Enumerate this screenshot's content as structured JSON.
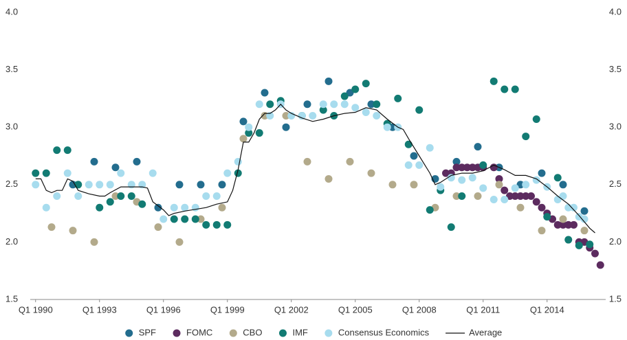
{
  "chart_data": {
    "type": "scatter",
    "xlim": [
      1989.75,
      2016.75
    ],
    "xticks": [
      {
        "value": 1990,
        "label": "Q1 1990"
      },
      {
        "value": 1993,
        "label": "Q1 1993"
      },
      {
        "value": 1996,
        "label": "Q1 1996"
      },
      {
        "value": 1999,
        "label": "Q1 1999"
      },
      {
        "value": 2002,
        "label": "Q1 2002"
      },
      {
        "value": 2005,
        "label": "Q1 2005"
      },
      {
        "value": 2008,
        "label": "Q1 2008"
      },
      {
        "value": 2011,
        "label": "Q1 2011"
      },
      {
        "value": 2014,
        "label": "Q1 2014"
      }
    ],
    "ylim": [
      1.5,
      4
    ],
    "yticks": [
      1.5,
      {
        "value": 2,
        "label": "2.0"
      },
      2.5,
      {
        "value": 3,
        "label": "3.0"
      },
      3.5,
      {
        "value": 4,
        "label": "4.0"
      }
    ],
    "y2lim": [
      1.5,
      4
    ],
    "y2ticks": [
      1.5,
      {
        "value": 2,
        "label": "2.0"
      },
      2.5,
      {
        "value": 3,
        "label": "3.0"
      },
      3.5,
      {
        "value": 4,
        "label": "4.0"
      }
    ],
    "grid": false,
    "legend": "bottom",
    "series": [
      {
        "name": "SPF",
        "color": "#236d8e",
        "x": [
          1991.75,
          1992.75,
          1993.75,
          1994.75,
          1995.75,
          1996.75,
          1997.75,
          1998.75,
          1999.75,
          2000.75,
          2001.75,
          2002.75,
          2003.75,
          2004.75,
          2005.75,
          2006.75,
          2007.75,
          2008.75,
          2009.75,
          2010.75,
          2011.75,
          2012.75,
          2013.75,
          2014.75,
          2015.75
        ],
        "values": [
          2.5,
          2.7,
          2.65,
          2.7,
          2.3,
          2.5,
          2.5,
          2.5,
          3.05,
          3.3,
          3.0,
          3.2,
          3.4,
          3.3,
          3.2,
          3.0,
          2.75,
          2.55,
          2.7,
          2.83,
          2.65,
          2.5,
          2.6,
          2.5,
          2.27
        ]
      },
      {
        "name": "FOMC",
        "color": "#5c2b5f",
        "x": [
          2009.25,
          2009.5,
          2009.75,
          2010,
          2010.25,
          2010.5,
          2010.75,
          2011,
          2011.5,
          2011.75,
          2012,
          2012.25,
          2012.5,
          2012.75,
          2013,
          2013.25,
          2013.5,
          2013.75,
          2014,
          2014.25,
          2014.5,
          2014.75,
          2015,
          2015.25,
          2015.5,
          2015.75,
          2016,
          2016.25,
          2016.5
        ],
        "values": [
          2.6,
          2.6,
          2.65,
          2.65,
          2.65,
          2.65,
          2.65,
          2.65,
          2.65,
          2.55,
          2.45,
          2.4,
          2.4,
          2.4,
          2.4,
          2.4,
          2.35,
          2.3,
          2.25,
          2.2,
          2.15,
          2.15,
          2.15,
          2.15,
          2.0,
          2.0,
          1.95,
          1.9,
          1.8
        ]
      },
      {
        "name": "CBO",
        "color": "#b3aa8b",
        "x": [
          1990.75,
          1991.75,
          1992.75,
          1993.75,
          1994.75,
          1995.75,
          1996.75,
          1997.75,
          1998.75,
          1999.75,
          2000.75,
          2001.75,
          2002.75,
          2003.75,
          2004.75,
          2005.75,
          2006.75,
          2007.75,
          2008.75,
          2009.75,
          2010.75,
          2011.75,
          2012.75,
          2013.75,
          2014.75,
          2015.75
        ],
        "values": [
          2.13,
          2.1,
          2.0,
          2.4,
          2.35,
          2.13,
          2.0,
          2.2,
          2.3,
          2.9,
          3.1,
          3.1,
          2.7,
          2.55,
          2.7,
          2.6,
          2.5,
          2.5,
          2.3,
          2.4,
          2.4,
          2.5,
          2.3,
          2.1,
          2.2,
          2.1
        ]
      },
      {
        "name": "IMF",
        "color": "#127b73",
        "x": [
          1990,
          1990.5,
          1991,
          1991.5,
          1992,
          1993,
          1993.5,
          1994,
          1994.5,
          1995,
          1996.5,
          1997,
          1997.5,
          1998,
          1998.5,
          1999,
          1999.5,
          2000,
          2000.5,
          2001,
          2001.5,
          2002.5,
          2003.5,
          2004,
          2004.5,
          2005,
          2005.5,
          2006,
          2006.5,
          2007,
          2007.5,
          2008,
          2008.5,
          2009,
          2009.5,
          2010,
          2011,
          2011.5,
          2012,
          2012.5,
          2013,
          2013.5,
          2014,
          2014.5,
          2015,
          2015.5,
          2016
        ],
        "values": [
          2.6,
          2.6,
          2.8,
          2.8,
          2.5,
          2.3,
          2.35,
          2.4,
          2.4,
          2.33,
          2.2,
          2.2,
          2.2,
          2.15,
          2.15,
          2.15,
          2.6,
          2.95,
          2.95,
          3.2,
          3.23,
          3.1,
          3.15,
          3.1,
          3.27,
          3.33,
          3.38,
          3.2,
          3.03,
          3.25,
          2.85,
          3.15,
          2.28,
          2.45,
          2.13,
          2.4,
          2.67,
          3.4,
          3.33,
          3.33,
          2.92,
          3.07,
          2.22,
          2.56,
          2.02,
          1.97,
          1.98
        ]
      },
      {
        "name": "Consensus Economics",
        "color": "#a7dcee",
        "x": [
          1990,
          1990.5,
          1991,
          1991.5,
          1992,
          1992.5,
          1993,
          1993.5,
          1994,
          1994.5,
          1995,
          1995.5,
          1996,
          1996.5,
          1997,
          1997.5,
          1998,
          1998.5,
          1999,
          1999.5,
          2000,
          2000.5,
          2001,
          2001.5,
          2002,
          2002.5,
          2003,
          2003.5,
          2004,
          2004.5,
          2005,
          2005.5,
          2006,
          2006.5,
          2007,
          2007.5,
          2008,
          2008.5,
          2009,
          2009.5,
          2010,
          2010.5,
          2011,
          2011.5,
          2012,
          2012.5,
          2013,
          2013.5,
          2014,
          2014.5,
          2014.75,
          2015,
          2015.25,
          2015.5,
          2015.75
        ],
        "values": [
          2.5,
          2.3,
          2.4,
          2.6,
          2.4,
          2.5,
          2.5,
          2.5,
          2.6,
          2.5,
          2.5,
          2.6,
          2.2,
          2.3,
          2.3,
          2.3,
          2.4,
          2.4,
          2.6,
          2.7,
          3.0,
          3.2,
          3.1,
          3.2,
          3.1,
          3.1,
          3.1,
          3.2,
          3.2,
          3.2,
          3.17,
          3.13,
          3.1,
          3.0,
          3.0,
          2.67,
          2.67,
          2.82,
          2.48,
          2.56,
          2.54,
          2.56,
          2.47,
          2.37,
          2.37,
          2.47,
          2.5,
          2.54,
          2.48,
          2.37,
          2.4,
          2.3,
          2.3,
          2.22,
          2.2
        ]
      },
      {
        "name": "Average",
        "color": "#111111",
        "type": "line",
        "x": [
          1990,
          1990.25,
          1990.5,
          1990.75,
          1991,
          1991.25,
          1991.5,
          1991.75,
          1992,
          1992.5,
          1993,
          1993.25,
          1993.5,
          1994,
          1995,
          1995.25,
          1995.5,
          1996,
          1996.25,
          1996.5,
          1997,
          1998,
          1998.5,
          1999,
          1999.25,
          1999.5,
          1999.75,
          2000,
          2000.25,
          2000.5,
          2000.75,
          2001,
          2001.25,
          2001.5,
          2001.75,
          2002,
          2002.5,
          2003,
          2003.5,
          2004,
          2004.5,
          2005,
          2005.5,
          2006,
          2006.5,
          2007,
          2007.25,
          2007.5,
          2008,
          2008.5,
          2008.75,
          2009,
          2009.5,
          2010,
          2010.5,
          2011,
          2011.5,
          2012,
          2012.5,
          2013,
          2013.5,
          2014,
          2014.5,
          2015,
          2015.5,
          2016,
          2016.25
        ],
        "values": [
          2.55,
          2.55,
          2.45,
          2.43,
          2.45,
          2.45,
          2.55,
          2.53,
          2.45,
          2.42,
          2.4,
          2.4,
          2.43,
          2.48,
          2.48,
          2.47,
          2.35,
          2.28,
          2.23,
          2.25,
          2.27,
          2.3,
          2.33,
          2.35,
          2.45,
          2.63,
          2.87,
          2.87,
          2.95,
          3.07,
          3.12,
          3.12,
          3.15,
          3.2,
          3.15,
          3.12,
          3.08,
          3.05,
          3.07,
          3.1,
          3.12,
          3.13,
          3.17,
          3.15,
          3.07,
          3.0,
          2.98,
          2.9,
          2.75,
          2.6,
          2.5,
          2.52,
          2.58,
          2.6,
          2.6,
          2.62,
          2.67,
          2.63,
          2.58,
          2.58,
          2.55,
          2.48,
          2.4,
          2.33,
          2.23,
          2.12,
          2.08
        ]
      }
    ]
  }
}
